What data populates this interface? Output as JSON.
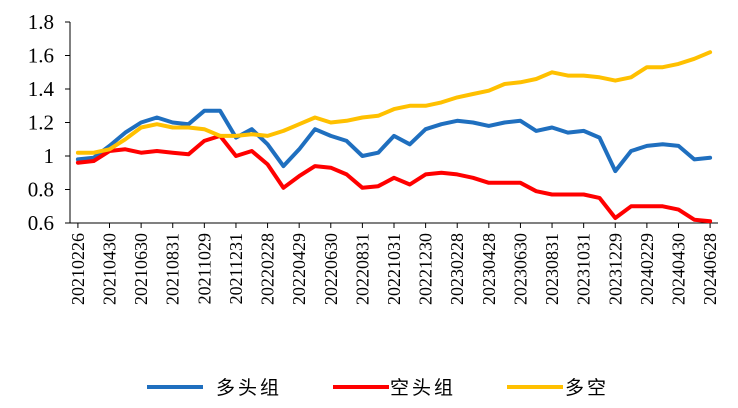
{
  "chart_data": {
    "type": "line",
    "title": "",
    "xlabel": "",
    "ylabel": "",
    "ylim": [
      0.6,
      1.8
    ],
    "yticks": [
      0.6,
      0.8,
      1,
      1.2,
      1.4,
      1.6,
      1.8
    ],
    "ytick_labels": [
      "0.6",
      "0.8",
      "1",
      "1.2",
      "1.4",
      "1.6",
      "1.8"
    ],
    "grid": false,
    "legend_position": "bottom",
    "x": [
      "20210226",
      "20210331",
      "20210430",
      "20210531",
      "20210630",
      "20210730",
      "20210831",
      "20210930",
      "20211029",
      "20211130",
      "20211231",
      "20220128",
      "20220228",
      "20220331",
      "20220429",
      "20220531",
      "20220630",
      "20220729",
      "20220831",
      "20220930",
      "20221031",
      "20221130",
      "20221230",
      "20230131",
      "20230228",
      "20230331",
      "20230428",
      "20230531",
      "20230630",
      "20230731",
      "20230831",
      "20230928",
      "20231031",
      "20231130",
      "20231229",
      "20240131",
      "20240229",
      "20240329",
      "20240430",
      "20240531",
      "20240628"
    ],
    "xtick_labels": [
      "20210226",
      "20210430",
      "20210630",
      "20210831",
      "20211029",
      "20211231",
      "20220228",
      "20220429",
      "20220630",
      "20220831",
      "20221031",
      "20221230",
      "20230228",
      "20230428",
      "20230630",
      "20230831",
      "20231031",
      "20231229",
      "20240229",
      "20240430",
      "20240628"
    ],
    "series": [
      {
        "name": "多头组",
        "color": "#1F6FBF",
        "values": [
          0.98,
          0.99,
          1.06,
          1.14,
          1.2,
          1.23,
          1.2,
          1.19,
          1.27,
          1.27,
          1.11,
          1.16,
          1.07,
          0.94,
          1.04,
          1.16,
          1.12,
          1.09,
          1.0,
          1.02,
          1.12,
          1.07,
          1.16,
          1.19,
          1.21,
          1.2,
          1.18,
          1.2,
          1.21,
          1.15,
          1.17,
          1.14,
          1.15,
          1.11,
          0.91,
          1.03,
          1.06,
          1.07,
          1.06,
          0.98,
          0.99
        ]
      },
      {
        "name": "空头组",
        "color": "#FF0000",
        "values": [
          0.96,
          0.97,
          1.03,
          1.04,
          1.02,
          1.03,
          1.02,
          1.01,
          1.09,
          1.12,
          1.0,
          1.03,
          0.95,
          0.81,
          0.88,
          0.94,
          0.93,
          0.89,
          0.81,
          0.82,
          0.87,
          0.83,
          0.89,
          0.9,
          0.89,
          0.87,
          0.84,
          0.84,
          0.84,
          0.79,
          0.77,
          0.77,
          0.77,
          0.75,
          0.63,
          0.7,
          0.7,
          0.7,
          0.68,
          0.62,
          0.61
        ]
      },
      {
        "name": "多空",
        "color": "#FFC000",
        "values": [
          1.02,
          1.02,
          1.04,
          1.1,
          1.17,
          1.19,
          1.17,
          1.17,
          1.16,
          1.12,
          1.12,
          1.13,
          1.12,
          1.15,
          1.19,
          1.23,
          1.2,
          1.21,
          1.23,
          1.24,
          1.28,
          1.3,
          1.3,
          1.32,
          1.35,
          1.37,
          1.39,
          1.43,
          1.44,
          1.46,
          1.5,
          1.48,
          1.48,
          1.47,
          1.45,
          1.47,
          1.53,
          1.53,
          1.55,
          1.58,
          1.62
        ]
      }
    ]
  }
}
